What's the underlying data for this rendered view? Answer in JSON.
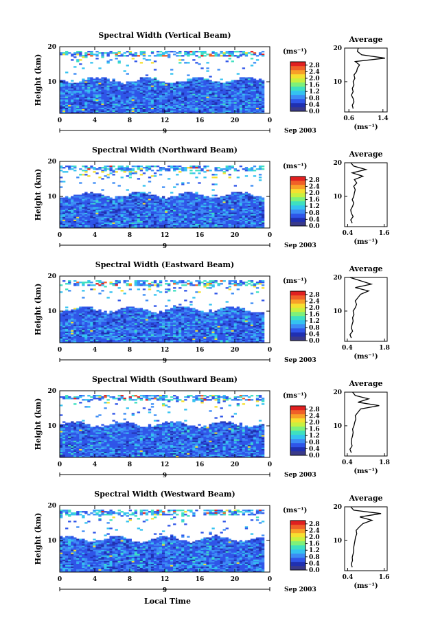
{
  "figure": {
    "xlabel": "Local Time",
    "date_label": "Sep 2003",
    "day_label": "9"
  },
  "colorbar": {
    "unit": "(ms⁻¹)",
    "ticks": [
      "0.0",
      "0.4",
      "0.8",
      "1.2",
      "1.6",
      "2.0",
      "2.4",
      "2.8"
    ],
    "colors": [
      "#3a3a8a",
      "#2030b0",
      "#2f55e8",
      "#3c8cf5",
      "#34c2f0",
      "#3ee0c0",
      "#7ef07a",
      "#c8f040",
      "#f5e030",
      "#f8a028",
      "#f06028",
      "#e02020"
    ]
  },
  "chart_data": [
    {
      "type": "heatmap",
      "title": "Spectral Width (Vertical Beam)",
      "ylabel": "Height (km)",
      "x_ticks": [
        "0",
        "4",
        "8",
        "12",
        "16",
        "20",
        "0"
      ],
      "y_ticks": [
        "20",
        "10"
      ],
      "xlim": [
        0,
        24
      ],
      "ylim": [
        1,
        20
      ],
      "colorbar_range": [
        0.0,
        3.0
      ],
      "profile": {
        "title": "Average",
        "xlabel": "(ms⁻¹)",
        "x_ticks": [
          "0.6",
          "1.4"
        ],
        "xlim": [
          0.5,
          1.5
        ],
        "y_ticks": [
          "20",
          "10"
        ],
        "height": [
          2,
          3,
          4,
          5,
          6,
          7,
          8,
          9,
          10,
          11,
          12,
          13,
          14,
          15,
          16,
          17,
          18,
          19,
          20
        ],
        "values": [
          0.7,
          0.68,
          0.72,
          0.7,
          0.66,
          0.7,
          0.68,
          0.72,
          0.7,
          0.74,
          0.72,
          0.78,
          0.8,
          0.85,
          0.75,
          1.45,
          0.9,
          0.8,
          0.82
        ]
      }
    },
    {
      "type": "heatmap",
      "title": "Spectral Width (Northward Beam)",
      "ylabel": "Height (km)",
      "x_ticks": [
        "0",
        "4",
        "8",
        "12",
        "16",
        "20",
        "0"
      ],
      "y_ticks": [
        "20",
        "10"
      ],
      "xlim": [
        0,
        24
      ],
      "ylim": [
        1,
        20
      ],
      "colorbar_range": [
        0.0,
        3.0
      ],
      "profile": {
        "title": "Average",
        "xlabel": "(ms⁻¹)",
        "x_ticks": [
          "0.4",
          "1.6"
        ],
        "xlim": [
          0.3,
          1.7
        ],
        "y_ticks": [
          "20",
          "10"
        ],
        "height": [
          2,
          3,
          4,
          5,
          6,
          7,
          8,
          9,
          10,
          11,
          12,
          13,
          14,
          15,
          16,
          17,
          18,
          19,
          20
        ],
        "values": [
          0.55,
          0.5,
          0.58,
          0.52,
          0.5,
          0.56,
          0.6,
          0.55,
          0.6,
          0.62,
          0.65,
          0.6,
          0.7,
          0.62,
          0.9,
          0.55,
          1.0,
          0.6,
          0.5
        ]
      }
    },
    {
      "type": "heatmap",
      "title": "Spectral Width (Eastward Beam)",
      "ylabel": "Height (km)",
      "x_ticks": [
        "0",
        "4",
        "8",
        "12",
        "16",
        "20",
        "0"
      ],
      "y_ticks": [
        "20",
        "10"
      ],
      "xlim": [
        0,
        24
      ],
      "ylim": [
        1,
        20
      ],
      "colorbar_range": [
        0.0,
        3.0
      ],
      "profile": {
        "title": "Average",
        "xlabel": "(ms⁻¹)",
        "x_ticks": [
          "0.4",
          "1.8"
        ],
        "xlim": [
          0.3,
          1.9
        ],
        "y_ticks": [
          "20",
          "10"
        ],
        "height": [
          2,
          3,
          4,
          5,
          6,
          7,
          8,
          9,
          10,
          11,
          12,
          13,
          14,
          15,
          16,
          17,
          18,
          19,
          20
        ],
        "values": [
          0.55,
          0.5,
          0.6,
          0.55,
          0.58,
          0.62,
          0.6,
          0.65,
          0.62,
          0.7,
          0.75,
          0.7,
          0.8,
          0.9,
          1.2,
          0.7,
          1.3,
          0.9,
          0.5
        ]
      }
    },
    {
      "type": "heatmap",
      "title": "Spectral Width (Southward Beam)",
      "ylabel": "Height (km)",
      "x_ticks": [
        "0",
        "4",
        "8",
        "12",
        "16",
        "20",
        "0"
      ],
      "y_ticks": [
        "20",
        "10"
      ],
      "xlim": [
        0,
        24
      ],
      "ylim": [
        1,
        20
      ],
      "colorbar_range": [
        0.0,
        3.0
      ],
      "profile": {
        "title": "Average",
        "xlabel": "(ms⁻¹)",
        "x_ticks": [
          "0.4",
          "1.8"
        ],
        "xlim": [
          0.3,
          1.9
        ],
        "y_ticks": [
          "20",
          "10"
        ],
        "height": [
          2,
          3,
          4,
          5,
          6,
          7,
          8,
          9,
          10,
          11,
          12,
          13,
          14,
          15,
          16,
          17,
          18,
          19,
          20
        ],
        "values": [
          0.55,
          0.5,
          0.58,
          0.55,
          0.56,
          0.6,
          0.62,
          0.6,
          0.65,
          0.68,
          0.72,
          0.7,
          0.8,
          0.9,
          1.6,
          0.8,
          1.2,
          0.7,
          0.6
        ]
      }
    },
    {
      "type": "heatmap",
      "title": "Spectral Width (Westward Beam)",
      "ylabel": "Height (km)",
      "x_ticks": [
        "0",
        "4",
        "8",
        "12",
        "16",
        "20",
        "0"
      ],
      "y_ticks": [
        "20",
        "10"
      ],
      "xlim": [
        0,
        24
      ],
      "ylim": [
        1,
        20
      ],
      "colorbar_range": [
        0.0,
        3.0
      ],
      "profile": {
        "title": "Average",
        "xlabel": "(ms⁻¹)",
        "x_ticks": [
          "0.4",
          "1.6"
        ],
        "xlim": [
          0.3,
          1.7
        ],
        "y_ticks": [
          "20",
          "10"
        ],
        "height": [
          2,
          3,
          4,
          5,
          6,
          7,
          8,
          9,
          10,
          11,
          12,
          13,
          14,
          15,
          16,
          17,
          18,
          19,
          20
        ],
        "values": [
          0.55,
          0.52,
          0.56,
          0.55,
          0.58,
          0.6,
          0.6,
          0.62,
          0.64,
          0.66,
          0.7,
          0.68,
          0.78,
          0.9,
          1.2,
          0.8,
          1.5,
          0.6,
          0.5
        ]
      }
    }
  ]
}
